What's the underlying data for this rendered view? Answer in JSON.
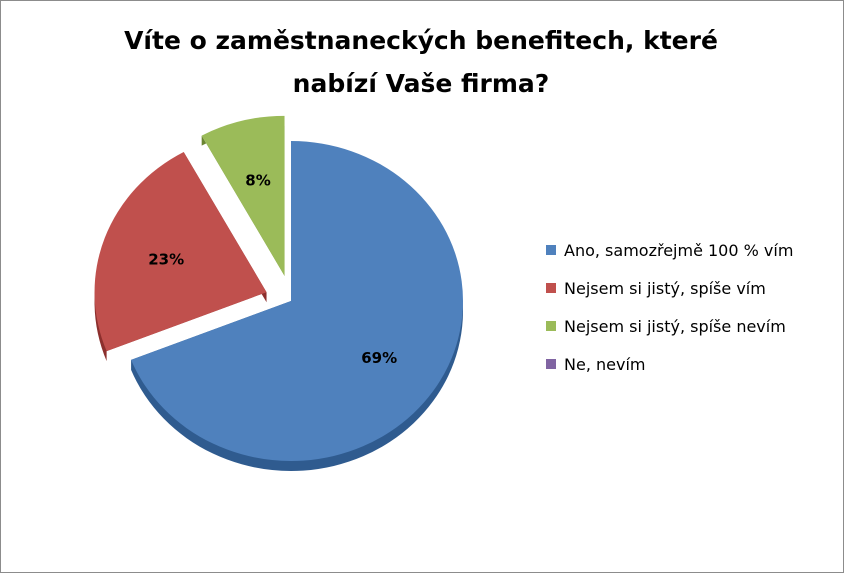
{
  "chart_data": {
    "type": "pie",
    "title": "Víte o zaměstnaneckých benefitech, které nabízí Vaše firma?",
    "title_lines": [
      "Víte o zaměstnaneckých benefitech, které",
      "nabízí Vaše firma?"
    ],
    "legend_position": "right",
    "exploded": true,
    "slices": [
      {
        "label": "Ano, samozřejmě 100 % vím",
        "value": 69,
        "data_label": "69%",
        "color": "#4f81bd",
        "side_color": "#2f5b8f"
      },
      {
        "label": "Nejsem si jistý, spíše vím",
        "value": 23,
        "data_label": "23%",
        "color": "#c0504d",
        "side_color": "#8c2f2d"
      },
      {
        "label": "Nejsem si jistý, spíše nevím",
        "value": 8,
        "data_label": "8%",
        "color": "#9bbb59",
        "side_color": "#6a8532"
      },
      {
        "label": "Ne, nevím",
        "value": 0,
        "data_label": "",
        "color": "#8064a2",
        "side_color": "#5a4677"
      }
    ]
  }
}
